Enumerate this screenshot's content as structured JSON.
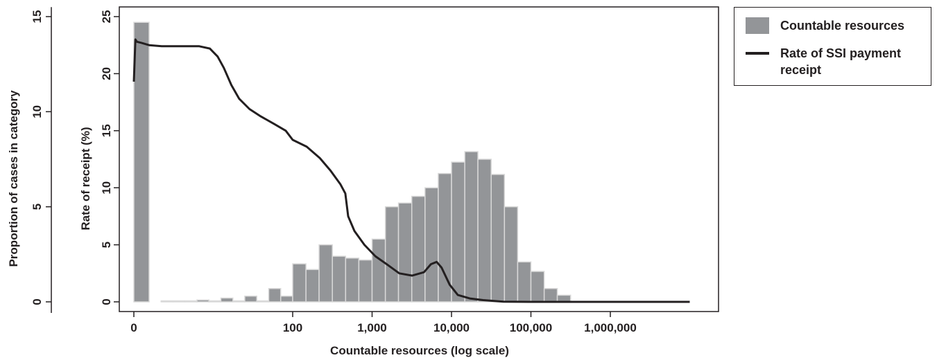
{
  "chart_data": {
    "type": "bar",
    "xlabel": "Countable resources (log scale)",
    "ylabel_left": "Proportion of cases in category",
    "ylabel_right": "Rate of receipt (%)",
    "x_scale": "log",
    "x_ticks": [
      "0",
      "100",
      "1,000",
      "10,000",
      "100,000",
      "1,000,000"
    ],
    "yleft_ticks": [
      "0",
      "5",
      "10",
      "15"
    ],
    "yleft_lim": [
      0,
      15.5
    ],
    "yright_ticks": [
      "0",
      "5",
      "10",
      "15",
      "20",
      "25"
    ],
    "yright_lim": [
      0,
      25
    ],
    "grid": false,
    "legend_position": "right",
    "colors": {
      "bars": "#939598",
      "line": "#231f20",
      "bar_edge": "#d9d9d9"
    },
    "legend": [
      {
        "key": "bar",
        "label": "Countable resources"
      },
      {
        "key": "line",
        "label": "Rate of SSI payment receipt"
      }
    ],
    "series": [
      {
        "name": "Countable resources",
        "type": "bar",
        "bins": [
          {
            "x0": 0,
            "x1": 1,
            "value": 14.7
          },
          {
            "x0": 1.47,
            "x1": 2.15,
            "value": 0.05
          },
          {
            "x0": 2.15,
            "x1": 3.16,
            "value": 0.05
          },
          {
            "x0": 3.16,
            "x1": 4.64,
            "value": 0.05
          },
          {
            "x0": 4.64,
            "x1": 6.81,
            "value": 0.1
          },
          {
            "x0": 6.81,
            "x1": 10,
            "value": 0.05
          },
          {
            "x0": 10,
            "x1": 14.7,
            "value": 0.2
          },
          {
            "x0": 14.7,
            "x1": 21.5,
            "value": 0.05
          },
          {
            "x0": 21.5,
            "x1": 31.6,
            "value": 0.3
          },
          {
            "x0": 31.6,
            "x1": 46.4,
            "value": 0.05
          },
          {
            "x0": 46.4,
            "x1": 68.1,
            "value": 0.7
          },
          {
            "x0": 68.1,
            "x1": 100,
            "value": 0.3
          },
          {
            "x0": 100,
            "x1": 147,
            "value": 2.0
          },
          {
            "x0": 147,
            "x1": 215,
            "value": 1.7
          },
          {
            "x0": 215,
            "x1": 316,
            "value": 3.0
          },
          {
            "x0": 316,
            "x1": 464,
            "value": 2.4
          },
          {
            "x0": 464,
            "x1": 681,
            "value": 2.3
          },
          {
            "x0": 681,
            "x1": 1000,
            "value": 2.2
          },
          {
            "x0": 1000,
            "x1": 1470,
            "value": 3.3
          },
          {
            "x0": 1470,
            "x1": 2150,
            "value": 5.0
          },
          {
            "x0": 2150,
            "x1": 3160,
            "value": 5.2
          },
          {
            "x0": 3160,
            "x1": 4640,
            "value": 5.55
          },
          {
            "x0": 4640,
            "x1": 6810,
            "value": 6.0
          },
          {
            "x0": 6810,
            "x1": 10000,
            "value": 6.75
          },
          {
            "x0": 10000,
            "x1": 14700,
            "value": 7.35
          },
          {
            "x0": 14700,
            "x1": 21500,
            "value": 7.9
          },
          {
            "x0": 21500,
            "x1": 31600,
            "value": 7.5
          },
          {
            "x0": 31600,
            "x1": 46400,
            "value": 6.7
          },
          {
            "x0": 46400,
            "x1": 68100,
            "value": 5.0
          },
          {
            "x0": 68100,
            "x1": 100000,
            "value": 2.1
          },
          {
            "x0": 100000,
            "x1": 147000,
            "value": 1.6
          },
          {
            "x0": 147000,
            "x1": 215000,
            "value": 0.7
          },
          {
            "x0": 215000,
            "x1": 316000,
            "value": 0.35
          }
        ]
      },
      {
        "name": "Rate of SSI payment receipt",
        "type": "line",
        "points": [
          [
            0,
            19.3
          ],
          [
            0.1,
            23.0
          ],
          [
            0.2,
            22.8
          ],
          [
            0.5,
            22.7
          ],
          [
            1,
            22.5
          ],
          [
            1.5,
            22.4
          ],
          [
            3,
            22.4
          ],
          [
            5,
            22.4
          ],
          [
            7,
            22.2
          ],
          [
            9,
            21.5
          ],
          [
            11,
            20.5
          ],
          [
            14,
            19.0
          ],
          [
            18,
            17.8
          ],
          [
            25,
            16.9
          ],
          [
            35,
            16.3
          ],
          [
            55,
            15.6
          ],
          [
            80,
            15.0
          ],
          [
            100,
            14.2
          ],
          [
            150,
            13.6
          ],
          [
            220,
            12.6
          ],
          [
            300,
            11.5
          ],
          [
            400,
            10.3
          ],
          [
            460,
            9.5
          ],
          [
            500,
            7.5
          ],
          [
            600,
            6.2
          ],
          [
            800,
            5.0
          ],
          [
            1100,
            4.0
          ],
          [
            1600,
            3.2
          ],
          [
            2200,
            2.5
          ],
          [
            3200,
            2.3
          ],
          [
            4500,
            2.6
          ],
          [
            5500,
            3.3
          ],
          [
            6500,
            3.5
          ],
          [
            7500,
            3.0
          ],
          [
            9500,
            1.5
          ],
          [
            12000,
            0.6
          ],
          [
            17000,
            0.3
          ],
          [
            25000,
            0.15
          ],
          [
            45000,
            0.02
          ],
          [
            100000,
            0.0
          ],
          [
            1000000,
            0.0
          ],
          [
            10000000,
            0.0
          ]
        ]
      }
    ]
  }
}
